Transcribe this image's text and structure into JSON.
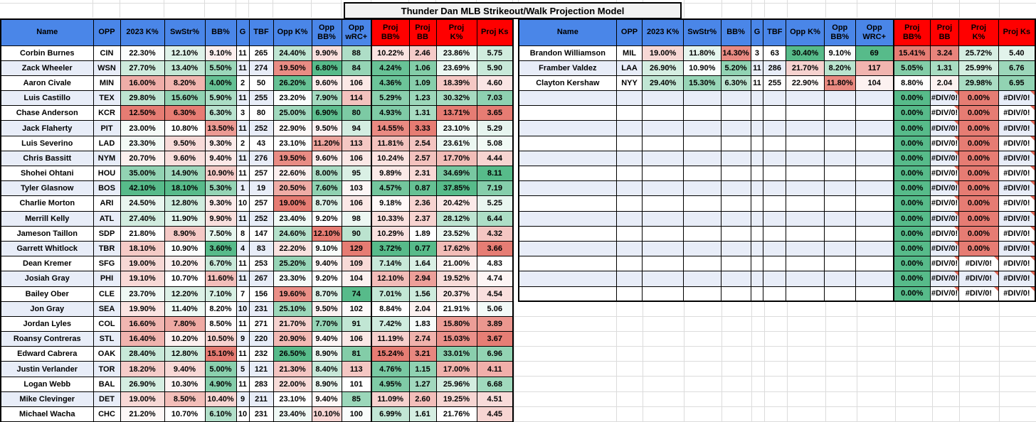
{
  "title": "Thunder Dan MLB Strikeout/Walk Projection Model",
  "colors": {
    "scale_green": "#57BB8A",
    "scale_red": "#E67C73",
    "scale_mid": "#FFFFFF",
    "header_blue": "#4A86E8",
    "header_red": "#FF0000",
    "row_band": "#E8EDF8",
    "title_bg": "#F2F2F2",
    "grid_border": "#000000",
    "error_flag": "#E06655"
  },
  "error_value": "#DIV/0!",
  "tables": {
    "left": {
      "headers": [
        "Name",
        "OPP",
        "2023 K%",
        "SwStr%",
        "BB%",
        "G",
        "TBF",
        "Opp K%",
        "Opp\nBB%",
        "Opp\nwRC+",
        "Proj\nBB%",
        "Proj\nBB",
        "Proj\nK%",
        "Proj Ks"
      ],
      "rows": [
        [
          "Corbin Burnes",
          "CIN",
          "22.30%",
          "12.10%",
          "9.10%",
          "11",
          "265",
          "24.40%",
          "9.90%",
          "88",
          "10.22%",
          "2.46",
          "23.86%",
          "5.75"
        ],
        [
          "Zack Wheeler",
          "WSN",
          "27.70%",
          "13.40%",
          "5.50%",
          "11",
          "274",
          "19.50%",
          "6.80%",
          "84",
          "4.24%",
          "1.06",
          "23.69%",
          "5.90"
        ],
        [
          "Aaron Civale",
          "MIN",
          "16.00%",
          "8.20%",
          "4.00%",
          "2",
          "50",
          "26.20%",
          "9.60%",
          "106",
          "4.36%",
          "1.09",
          "18.39%",
          "4.60"
        ],
        [
          "Luis Castillo",
          "TEX",
          "29.80%",
          "15.60%",
          "5.90%",
          "11",
          "255",
          "23.20%",
          "7.90%",
          "114",
          "5.29%",
          "1.23",
          "30.32%",
          "7.03"
        ],
        [
          "Chase Anderson",
          "KCR",
          "12.50%",
          "6.30%",
          "6.30%",
          "3",
          "80",
          "25.00%",
          "6.90%",
          "80",
          "4.93%",
          "1.31",
          "13.71%",
          "3.65"
        ],
        [
          "Jack Flaherty",
          "PIT",
          "23.00%",
          "10.80%",
          "13.50%",
          "11",
          "252",
          "22.90%",
          "9.50%",
          "94",
          "14.55%",
          "3.33",
          "23.10%",
          "5.29"
        ],
        [
          "Luis Severino",
          "LAD",
          "23.30%",
          "9.50%",
          "9.30%",
          "2",
          "43",
          "23.10%",
          "11.20%",
          "113",
          "11.81%",
          "2.54",
          "23.61%",
          "5.08"
        ],
        [
          "Chris Bassitt",
          "NYM",
          "20.70%",
          "9.60%",
          "9.40%",
          "11",
          "276",
          "19.50%",
          "9.60%",
          "106",
          "10.24%",
          "2.57",
          "17.70%",
          "4.44"
        ],
        [
          "Shohei Ohtani",
          "HOU",
          "35.00%",
          "14.90%",
          "10.90%",
          "11",
          "257",
          "22.60%",
          "8.00%",
          "95",
          "9.89%",
          "2.31",
          "34.69%",
          "8.11"
        ],
        [
          "Tyler Glasnow",
          "BOS",
          "42.10%",
          "18.10%",
          "5.30%",
          "1",
          "19",
          "20.50%",
          "7.60%",
          "103",
          "4.57%",
          "0.87",
          "37.85%",
          "7.19"
        ],
        [
          "Charlie Morton",
          "ARI",
          "24.50%",
          "12.80%",
          "9.30%",
          "10",
          "257",
          "19.00%",
          "8.70%",
          "106",
          "9.18%",
          "2.36",
          "20.42%",
          "5.25"
        ],
        [
          "Merrill Kelly",
          "ATL",
          "27.40%",
          "11.90%",
          "9.90%",
          "11",
          "252",
          "23.40%",
          "9.20%",
          "98",
          "10.33%",
          "2.37",
          "28.12%",
          "6.44"
        ],
        [
          "Jameson Taillon",
          "SDP",
          "21.80%",
          "8.90%",
          "7.50%",
          "8",
          "147",
          "24.60%",
          "12.10%",
          "90",
          "10.29%",
          "1.89",
          "23.52%",
          "4.32"
        ],
        [
          "Garrett Whitlock",
          "TBR",
          "18.10%",
          "10.90%",
          "3.60%",
          "4",
          "83",
          "22.20%",
          "9.10%",
          "129",
          "3.72%",
          "0.77",
          "17.62%",
          "3.66"
        ],
        [
          "Dean Kremer",
          "SFG",
          "19.00%",
          "10.20%",
          "6.70%",
          "11",
          "253",
          "25.20%",
          "9.40%",
          "109",
          "7.14%",
          "1.64",
          "21.00%",
          "4.83"
        ],
        [
          "Josiah Gray",
          "PHI",
          "19.10%",
          "10.70%",
          "11.60%",
          "11",
          "267",
          "23.30%",
          "9.20%",
          "104",
          "12.10%",
          "2.94",
          "19.52%",
          "4.74"
        ],
        [
          "Bailey Ober",
          "CLE",
          "23.70%",
          "12.20%",
          "7.10%",
          "7",
          "156",
          "19.60%",
          "8.70%",
          "74",
          "7.01%",
          "1.56",
          "20.37%",
          "4.54"
        ],
        [
          "Jon Gray",
          "SEA",
          "19.90%",
          "11.40%",
          "8.20%",
          "10",
          "231",
          "25.10%",
          "9.50%",
          "102",
          "8.84%",
          "2.04",
          "21.91%",
          "5.06"
        ],
        [
          "Jordan Lyles",
          "COL",
          "16.60%",
          "7.80%",
          "8.50%",
          "11",
          "271",
          "21.70%",
          "7.70%",
          "91",
          "7.42%",
          "1.83",
          "15.80%",
          "3.89"
        ],
        [
          "Roansy Contreras",
          "STL",
          "16.40%",
          "10.20%",
          "10.50%",
          "9",
          "220",
          "20.90%",
          "9.40%",
          "106",
          "11.19%",
          "2.74",
          "15.03%",
          "3.67"
        ],
        [
          "Edward Cabrera",
          "OAK",
          "28.40%",
          "12.80%",
          "15.10%",
          "11",
          "232",
          "26.50%",
          "8.90%",
          "81",
          "15.24%",
          "3.21",
          "33.01%",
          "6.96"
        ],
        [
          "Justin Verlander",
          "TOR",
          "18.20%",
          "9.40%",
          "5.00%",
          "5",
          "121",
          "21.30%",
          "8.40%",
          "113",
          "4.76%",
          "1.15",
          "17.00%",
          "4.11"
        ],
        [
          "Logan Webb",
          "BAL",
          "26.90%",
          "10.30%",
          "4.90%",
          "11",
          "283",
          "22.00%",
          "8.90%",
          "101",
          "4.95%",
          "1.27",
          "25.96%",
          "6.68"
        ],
        [
          "Mike Clevinger",
          "DET",
          "19.00%",
          "8.50%",
          "10.40%",
          "9",
          "211",
          "23.10%",
          "9.40%",
          "85",
          "11.09%",
          "2.60",
          "19.25%",
          "4.51"
        ],
        [
          "Michael Wacha",
          "CHC",
          "21.20%",
          "10.70%",
          "6.10%",
          "10",
          "231",
          "23.40%",
          "10.10%",
          "100",
          "6.99%",
          "1.61",
          "21.76%",
          "4.45"
        ]
      ]
    },
    "right": {
      "headers": [
        "Name",
        "OPP",
        "2023 K%",
        "SwStr%",
        "BB%",
        "G",
        "TBF",
        "Opp K%",
        "Opp\nBB%",
        "Opp\nWRC+",
        "Proj\nBB%",
        "Proj\nBB",
        "Proj\nK%",
        "Proj Ks"
      ],
      "rows": [
        [
          "Brandon Williamson",
          "MIL",
          "19.00%",
          "11.80%",
          "14.30%",
          "3",
          "63",
          "30.40%",
          "9.10%",
          "69",
          "15.41%",
          "3.24",
          "25.72%",
          "5.40"
        ],
        [
          "Framber Valdez",
          "LAA",
          "26.90%",
          "10.90%",
          "5.20%",
          "11",
          "286",
          "21.70%",
          "8.20%",
          "117",
          "5.05%",
          "1.31",
          "25.99%",
          "6.76"
        ],
        [
          "Clayton Kershaw",
          "NYY",
          "29.40%",
          "15.30%",
          "6.30%",
          "11",
          "255",
          "22.90%",
          "11.80%",
          "104",
          "8.80%",
          "2.04",
          "29.98%",
          "6.95"
        ],
        [
          "",
          "",
          "",
          "",
          "",
          "",
          "",
          "",
          "",
          "",
          "0.00%",
          "#DIV/0!",
          "0.00%",
          "#DIV/0!"
        ],
        [
          "",
          "",
          "",
          "",
          "",
          "",
          "",
          "",
          "",
          "",
          "0.00%",
          "#DIV/0!",
          "0.00%",
          "#DIV/0!"
        ],
        [
          "",
          "",
          "",
          "",
          "",
          "",
          "",
          "",
          "",
          "",
          "0.00%",
          "#DIV/0!",
          "0.00%",
          "#DIV/0!"
        ],
        [
          "",
          "",
          "",
          "",
          "",
          "",
          "",
          "",
          "",
          "",
          "0.00%",
          "#DIV/0!",
          "0.00%",
          "#DIV/0!"
        ],
        [
          "",
          "",
          "",
          "",
          "",
          "",
          "",
          "",
          "",
          "",
          "0.00%",
          "#DIV/0!",
          "0.00%",
          "#DIV/0!"
        ],
        [
          "",
          "",
          "",
          "",
          "",
          "",
          "",
          "",
          "",
          "",
          "0.00%",
          "#DIV/0!",
          "0.00%",
          "#DIV/0!"
        ],
        [
          "",
          "",
          "",
          "",
          "",
          "",
          "",
          "",
          "",
          "",
          "0.00%",
          "#DIV/0!",
          "0.00%",
          "#DIV/0!"
        ],
        [
          "",
          "",
          "",
          "",
          "",
          "",
          "",
          "",
          "",
          "",
          "0.00%",
          "#DIV/0!",
          "0.00%",
          "#DIV/0!"
        ],
        [
          "",
          "",
          "",
          "",
          "",
          "",
          "",
          "",
          "",
          "",
          "0.00%",
          "#DIV/0!",
          "0.00%",
          "#DIV/0!"
        ],
        [
          "",
          "",
          "",
          "",
          "",
          "",
          "",
          "",
          "",
          "",
          "0.00%",
          "#DIV/0!",
          "0.00%",
          "#DIV/0!"
        ],
        [
          "",
          "",
          "",
          "",
          "",
          "",
          "",
          "",
          "",
          "",
          "0.00%",
          "#DIV/0!",
          "0.00%",
          "#DIV/0!"
        ],
        [
          "",
          "",
          "",
          "",
          "",
          "",
          "",
          "",
          "",
          "",
          "0.00%",
          "#DIV/0!",
          "#DIV/0!",
          "#DIV/0!"
        ],
        [
          "",
          "",
          "",
          "",
          "",
          "",
          "",
          "",
          "",
          "",
          "0.00%",
          "#DIV/0!",
          "#DIV/0!",
          "#DIV/0!"
        ],
        [
          "",
          "",
          "",
          "",
          "",
          "",
          "",
          "",
          "",
          "",
          "0.00%",
          "#DIV/0!",
          "#DIV/0!",
          "#DIV/0!"
        ]
      ]
    }
  }
}
